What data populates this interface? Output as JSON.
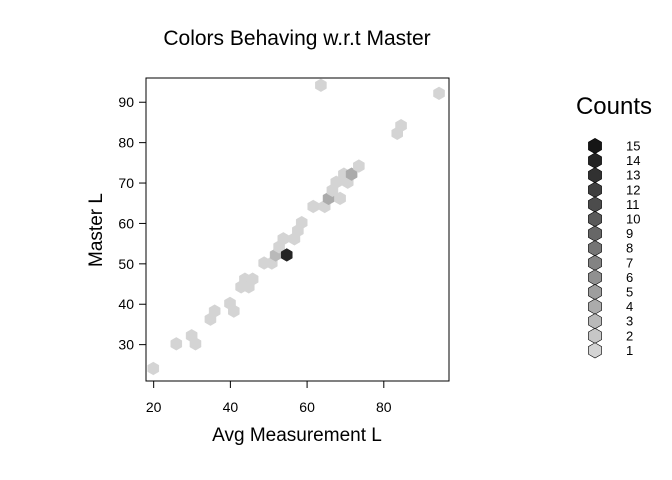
{
  "chart_data": {
    "type": "hexbin",
    "title": "Colors Behaving w.r.t Master",
    "xlabel": "Avg Measurement L",
    "ylabel": "Master L",
    "xlim": [
      18,
      97
    ],
    "ylim": [
      21,
      96
    ],
    "xticks": [
      20,
      40,
      60,
      80
    ],
    "yticks": [
      30,
      40,
      50,
      60,
      70,
      80,
      90
    ],
    "grid": false,
    "legend_position": "right",
    "legend_title": "Counts",
    "legend_counts": [
      "15",
      "14",
      "13",
      "12",
      "11",
      "10",
      "9",
      "8",
      "7",
      "6",
      "5",
      "4",
      "3",
      "2",
      "1"
    ],
    "bins": [
      {
        "x": 19.9,
        "y": 24.1,
        "count": 1
      },
      {
        "x": 25.9,
        "y": 30.2,
        "count": 1
      },
      {
        "x": 29.9,
        "y": 32.2,
        "count": 1
      },
      {
        "x": 30.9,
        "y": 30.2,
        "count": 1
      },
      {
        "x": 34.8,
        "y": 36.3,
        "count": 1
      },
      {
        "x": 35.9,
        "y": 38.3,
        "count": 1
      },
      {
        "x": 39.9,
        "y": 40.2,
        "count": 1
      },
      {
        "x": 40.9,
        "y": 38.3,
        "count": 1
      },
      {
        "x": 42.8,
        "y": 44.3,
        "count": 1
      },
      {
        "x": 43.8,
        "y": 46.2,
        "count": 1
      },
      {
        "x": 44.8,
        "y": 44.3,
        "count": 1
      },
      {
        "x": 45.8,
        "y": 46.2,
        "count": 1
      },
      {
        "x": 48.8,
        "y": 50.2,
        "count": 1
      },
      {
        "x": 50.8,
        "y": 50.2,
        "count": 1
      },
      {
        "x": 51.8,
        "y": 52.2,
        "count": 3
      },
      {
        "x": 52.7,
        "y": 54.2,
        "count": 1
      },
      {
        "x": 53.8,
        "y": 56.2,
        "count": 1
      },
      {
        "x": 54.7,
        "y": 52.2,
        "count": 14
      },
      {
        "x": 56.7,
        "y": 56.2,
        "count": 1
      },
      {
        "x": 57.6,
        "y": 58.2,
        "count": 1
      },
      {
        "x": 58.6,
        "y": 60.2,
        "count": 1
      },
      {
        "x": 61.6,
        "y": 64.2,
        "count": 1
      },
      {
        "x": 63.6,
        "y": 94.2,
        "count": 1
      },
      {
        "x": 64.6,
        "y": 64.2,
        "count": 1
      },
      {
        "x": 65.6,
        "y": 66.2,
        "count": 4
      },
      {
        "x": 66.6,
        "y": 68.2,
        "count": 1
      },
      {
        "x": 67.6,
        "y": 70.2,
        "count": 1
      },
      {
        "x": 68.6,
        "y": 66.2,
        "count": 1
      },
      {
        "x": 69.6,
        "y": 72.2,
        "count": 1
      },
      {
        "x": 70.6,
        "y": 70.2,
        "count": 1
      },
      {
        "x": 71.6,
        "y": 72.2,
        "count": 4
      },
      {
        "x": 73.5,
        "y": 74.2,
        "count": 1
      },
      {
        "x": 83.5,
        "y": 82.3,
        "count": 1
      },
      {
        "x": 84.5,
        "y": 84.2,
        "count": 1
      },
      {
        "x": 94.4,
        "y": 92.2,
        "count": 1
      }
    ]
  }
}
